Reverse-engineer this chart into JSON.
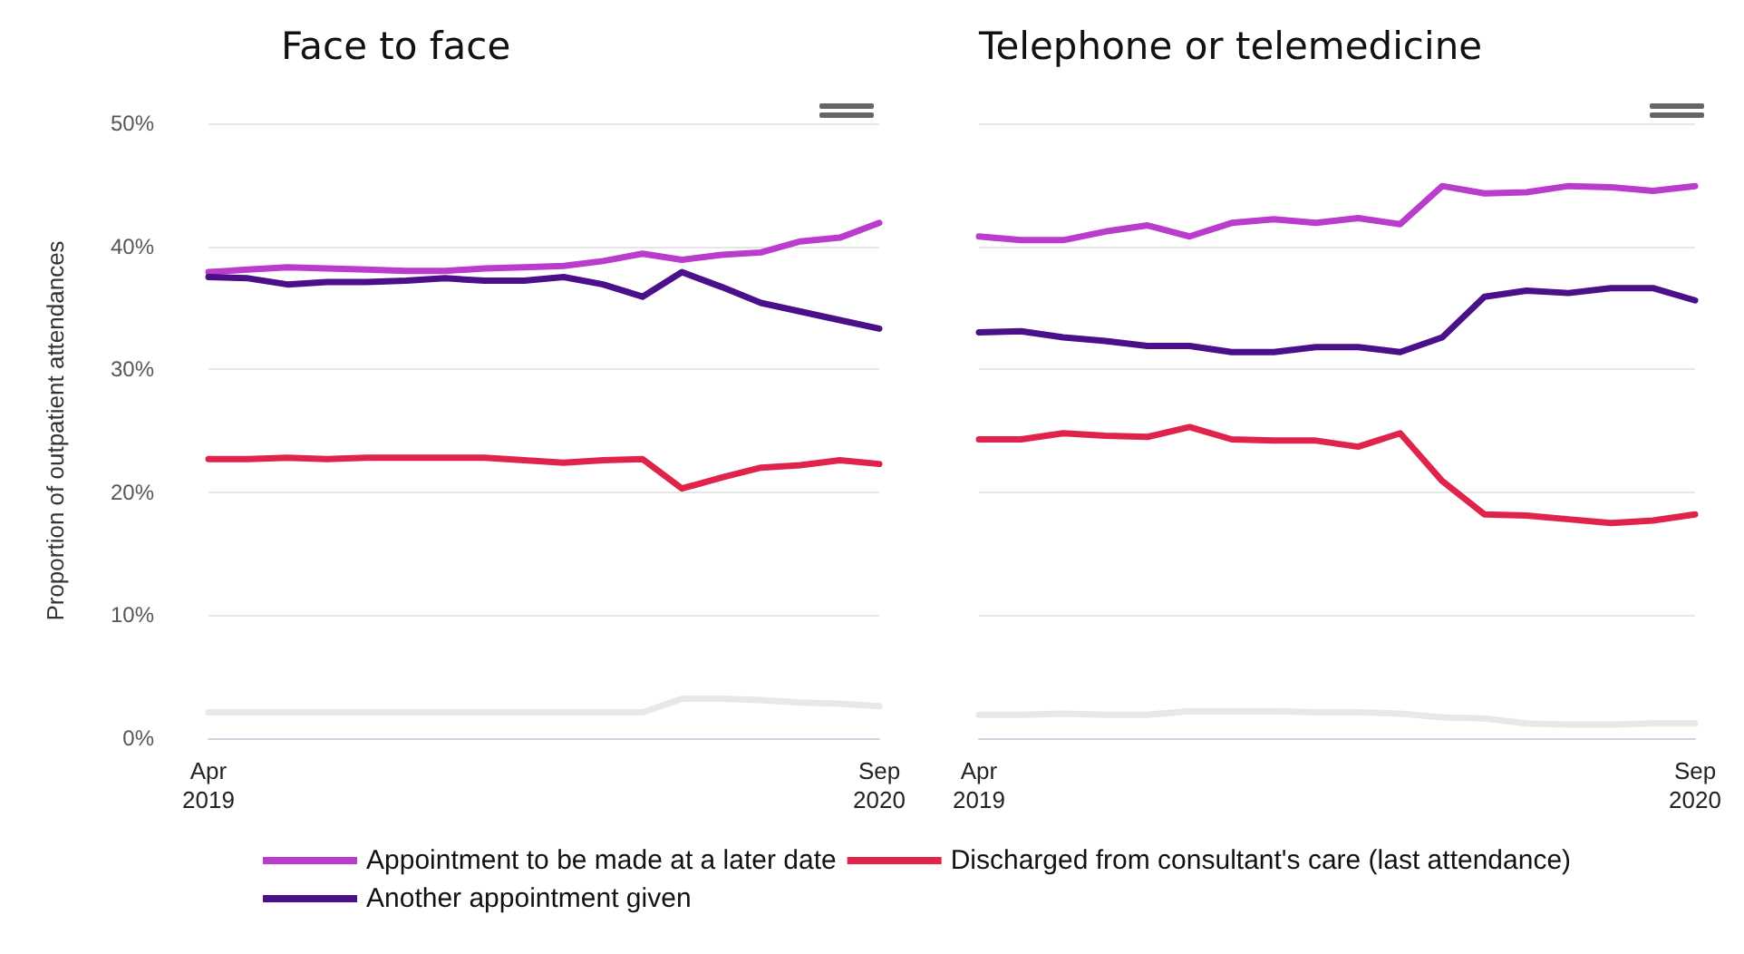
{
  "chart_data": [
    {
      "type": "line",
      "title": "Face to face",
      "ylabel": "Proportion of outpatient attendances",
      "categories": [
        "Apr 2019",
        null,
        null,
        null,
        null,
        null,
        null,
        null,
        null,
        null,
        null,
        null,
        null,
        null,
        null,
        null,
        null,
        "Sep 2020"
      ],
      "ylim": [
        0,
        50
      ],
      "yticks": [
        {
          "value": 0,
          "label": "0%"
        },
        {
          "value": 10,
          "label": "10%"
        },
        {
          "value": 20,
          "label": "20%"
        },
        {
          "value": 30,
          "label": "30%"
        },
        {
          "value": 40,
          "label": "40%"
        },
        {
          "value": 50,
          "label": "50%"
        }
      ],
      "grid": "y",
      "legend": "bottom",
      "marker": "none",
      "line_style": "solid",
      "series": [
        {
          "name": "Appointment to be made at a later date",
          "color": "#b93ccc",
          "values": [
            37.9,
            38.1,
            38.3,
            38.2,
            38.1,
            38.0,
            38.0,
            38.2,
            38.3,
            38.4,
            38.8,
            39.4,
            38.9,
            39.3,
            39.5,
            40.4,
            40.7,
            41.9
          ]
        },
        {
          "name": "Another appointment given",
          "color": "#4b0f8a",
          "values": [
            37.5,
            37.4,
            36.9,
            37.1,
            37.1,
            37.2,
            37.4,
            37.2,
            37.2,
            37.5,
            36.9,
            35.9,
            37.9,
            36.7,
            35.4,
            34.7,
            34.0,
            33.3
          ]
        },
        {
          "name": "Discharged from consultant's care (last attendance)",
          "color": "#e0234a",
          "values": [
            22.7,
            22.7,
            22.8,
            22.7,
            22.8,
            22.8,
            22.8,
            22.8,
            22.6,
            22.4,
            22.6,
            22.7,
            20.3,
            21.2,
            22.0,
            22.2,
            22.6,
            22.3
          ]
        },
        {
          "color": "#e8e8e8",
          "values": [
            2.1,
            2.1,
            2.1,
            2.1,
            2.1,
            2.1,
            2.1,
            2.1,
            2.1,
            2.1,
            2.1,
            2.1,
            3.2,
            3.2,
            3.1,
            2.9,
            2.8,
            2.6
          ]
        }
      ]
    },
    {
      "type": "line",
      "title": "Telephone or telemedicine",
      "categories": [
        "Apr 2019",
        null,
        null,
        null,
        null,
        null,
        null,
        null,
        null,
        null,
        null,
        null,
        null,
        null,
        null,
        null,
        null,
        "Sep 2020"
      ],
      "ylim": [
        0,
        50
      ],
      "yticks": [
        0,
        10,
        20,
        30,
        40,
        50
      ],
      "tick_labels": "x",
      "grid": "y",
      "marker": "none",
      "line_style": "solid",
      "series": [
        {
          "color": "#b93ccc",
          "values": [
            40.8,
            40.5,
            40.5,
            41.2,
            41.7,
            40.8,
            41.9,
            42.2,
            41.9,
            42.3,
            41.8,
            44.9,
            44.3,
            44.4,
            44.9,
            44.8,
            44.5,
            44.9
          ]
        },
        {
          "color": "#4b0f8a",
          "values": [
            33.0,
            33.1,
            32.6,
            32.3,
            31.9,
            31.9,
            31.4,
            31.4,
            31.8,
            31.8,
            31.4,
            32.6,
            35.9,
            36.4,
            36.2,
            36.6,
            36.6,
            35.6
          ]
        },
        {
          "color": "#e0234a",
          "values": [
            24.3,
            24.3,
            24.8,
            24.6,
            24.5,
            25.3,
            24.3,
            24.2,
            24.2,
            23.7,
            24.8,
            20.9,
            18.2,
            18.1,
            17.8,
            17.5,
            17.7,
            18.2
          ]
        },
        {
          "color": "#e8e8e8",
          "values": [
            1.9,
            1.9,
            2.0,
            1.9,
            1.9,
            2.2,
            2.2,
            2.2,
            2.1,
            2.1,
            2.0,
            1.7,
            1.6,
            1.2,
            1.1,
            1.1,
            1.2,
            1.2
          ]
        }
      ]
    }
  ]
}
